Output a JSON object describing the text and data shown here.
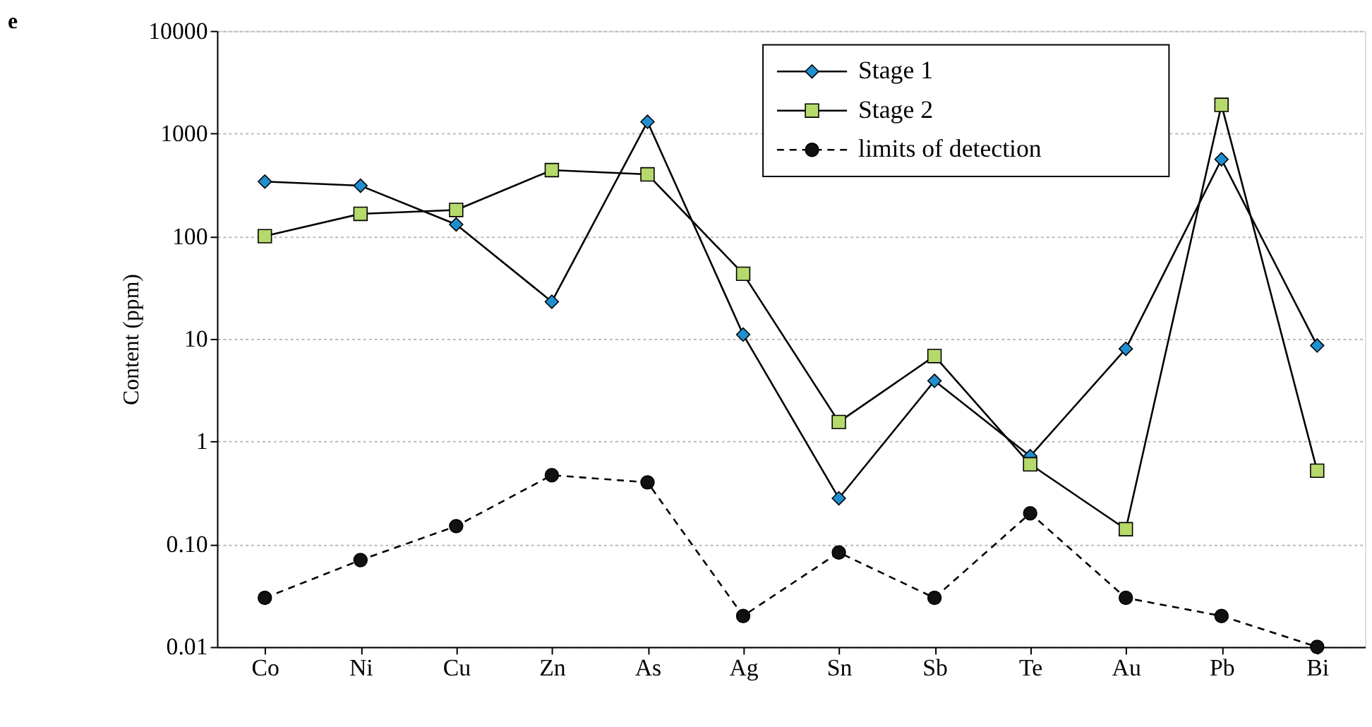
{
  "chart_data": {
    "type": "line",
    "ylabel": "Content (ppm)",
    "annotations": [
      "e"
    ],
    "categories": [
      "Co",
      "Ni",
      "Cu",
      "Zn",
      "As",
      "Ag",
      "Sn",
      "Sb",
      "Te",
      "Au",
      "Pb",
      "Bi"
    ],
    "series": [
      {
        "name": "Stage 1",
        "color": "#1f8fd0",
        "marker": "diamond",
        "line_style": "solid",
        "values": [
          340,
          310,
          130,
          23,
          1300,
          11,
          0.28,
          3.9,
          0.72,
          8,
          560,
          8.6
        ]
      },
      {
        "name": "Stage 2",
        "color": "#b5d96b",
        "marker": "square",
        "line_style": "solid",
        "values": [
          100,
          165,
          180,
          440,
          400,
          43,
          1.55,
          6.8,
          0.6,
          0.14,
          1900,
          0.52
        ]
      },
      {
        "name": "limits of detection",
        "color": "#111111",
        "marker": "circle",
        "line_style": "dashed",
        "values": [
          0.03,
          0.07,
          0.15,
          0.47,
          0.4,
          0.02,
          0.083,
          0.03,
          0.2,
          0.03,
          0.02,
          0.01
        ]
      }
    ],
    "log": "y",
    "ylim": [
      0.01,
      10000
    ],
    "yticks": [
      {
        "value": 0.01,
        "label": "0.01"
      },
      {
        "value": 0.1,
        "label": "0.10"
      },
      1,
      10,
      100,
      1000,
      10000
    ],
    "grid": "y",
    "legend": "top right"
  }
}
